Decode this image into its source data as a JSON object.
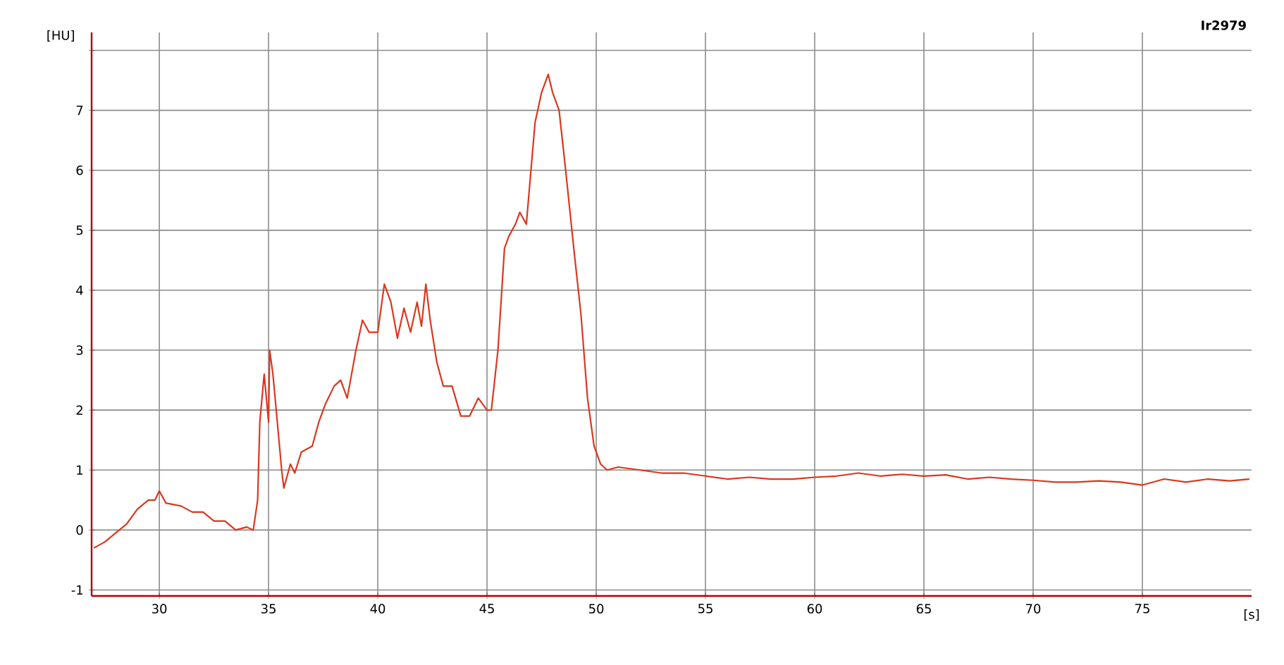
{
  "chart_data": {
    "type": "line",
    "xlabel": "[s]",
    "ylabel": "[HU]",
    "annotations": [
      "Ir2979"
    ],
    "xlim": [
      26.9,
      80
    ],
    "ylim": [
      -1.1,
      8.3
    ],
    "xticks": [
      30,
      35,
      40,
      45,
      50,
      55,
      60,
      65,
      70,
      75
    ],
    "yticks": [
      -1,
      0,
      1,
      2,
      3,
      4,
      5,
      6,
      7,
      {
        "value": 8,
        "label": null
      }
    ],
    "grid": true,
    "line_style": "solid",
    "marker": "none",
    "x": [
      27.0,
      27.5,
      28.0,
      28.5,
      29.0,
      29.5,
      29.8,
      30.0,
      30.3,
      31.0,
      31.5,
      32.0,
      32.5,
      33.0,
      33.5,
      34.0,
      34.3,
      34.5,
      34.6,
      34.8,
      35.0,
      35.05,
      35.2,
      35.4,
      35.6,
      35.7,
      36.0,
      36.2,
      36.5,
      37.0,
      37.3,
      37.6,
      38.0,
      38.3,
      38.6,
      39.0,
      39.3,
      39.6,
      40.0,
      40.3,
      40.6,
      40.9,
      41.2,
      41.5,
      41.8,
      42.0,
      42.2,
      42.4,
      42.7,
      43.0,
      43.4,
      43.8,
      44.2,
      44.6,
      45.0,
      45.2,
      45.5,
      45.8,
      46.0,
      46.3,
      46.5,
      46.8,
      47.2,
      47.5,
      47.8,
      48.0,
      48.3,
      48.6,
      49.0,
      49.3,
      49.6,
      49.9,
      50.2,
      50.5,
      51.0,
      52.0,
      53.0,
      54.0,
      55,
      56,
      57,
      58,
      59,
      60,
      61,
      62,
      63,
      64,
      65,
      66,
      67,
      68,
      69,
      70,
      71,
      72,
      73,
      74,
      75,
      76,
      77,
      78,
      79,
      79.9
    ],
    "series": [
      {
        "color": "#d9381e",
        "values": [
          -0.3,
          -0.2,
          -0.05,
          0.1,
          0.35,
          0.5,
          0.5,
          0.65,
          0.45,
          0.4,
          0.3,
          0.3,
          0.15,
          0.15,
          0.0,
          0.05,
          0.0,
          0.5,
          1.8,
          2.6,
          1.8,
          3.0,
          2.6,
          1.8,
          1.0,
          0.7,
          1.1,
          0.95,
          1.3,
          1.4,
          1.8,
          2.1,
          2.4,
          2.5,
          2.2,
          3.0,
          3.5,
          3.3,
          3.3,
          4.1,
          3.8,
          3.2,
          3.7,
          3.3,
          3.8,
          3.4,
          4.1,
          3.5,
          2.8,
          2.4,
          2.4,
          1.9,
          1.9,
          2.2,
          2.0,
          2.0,
          3.0,
          4.7,
          4.9,
          5.1,
          5.3,
          5.1,
          6.8,
          7.3,
          7.6,
          7.3,
          7.0,
          6.0,
          4.6,
          3.6,
          2.2,
          1.4,
          1.1,
          1.0,
          1.05,
          1.0,
          0.95,
          0.95,
          0.9,
          0.85,
          0.88,
          0.85,
          0.85,
          0.88,
          0.9,
          0.95,
          0.9,
          0.93,
          0.9,
          0.92,
          0.85,
          0.88,
          0.85,
          0.83,
          0.8,
          0.8,
          0.82,
          0.8,
          0.75,
          0.85,
          0.8,
          0.85,
          0.82,
          0.85
        ]
      }
    ]
  }
}
